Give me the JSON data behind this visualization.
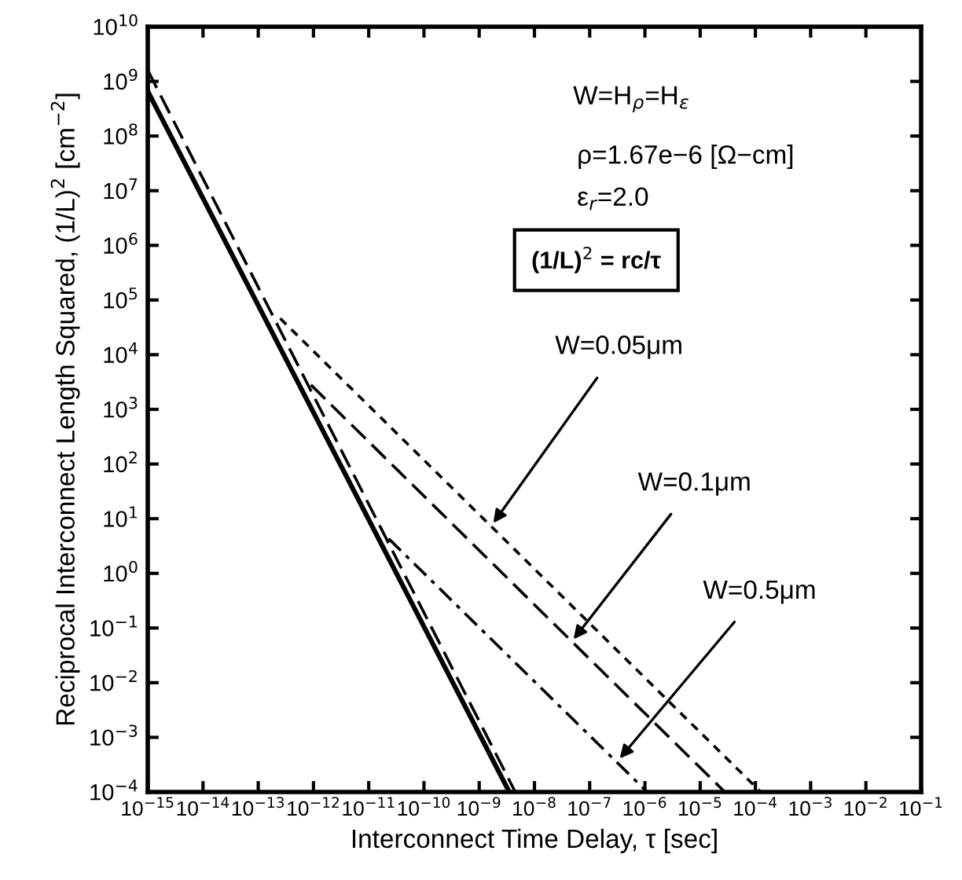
{
  "chart_data": {
    "type": "line",
    "xlabel": "Interconnect Time Delay, τ [sec]",
    "ylabel": "Reciprocal Interconnect Length Squared, (1/L)$^{2}$ [cm$^{−2}$]",
    "log": "xy",
    "grid": false,
    "marker": "none",
    "xlim": [
      1e-15,
      0.1
    ],
    "ylim": [
      0.0001,
      10000000000
    ],
    "xticks": [
      {
        "value": 1e-15,
        "label": "10$^{−15}$"
      },
      {
        "value": 1e-14,
        "label": "10$^{−14}$"
      },
      {
        "value": 1e-13,
        "label": "10$^{−13}$"
      },
      {
        "value": 1e-12,
        "label": "10$^{−12}$"
      },
      {
        "value": 1e-11,
        "label": "10$^{−11}$"
      },
      {
        "value": 1e-10,
        "label": "10$^{−10}$"
      },
      {
        "value": 1e-09,
        "label": "10$^{−9}$"
      },
      {
        "value": 1e-08,
        "label": "10$^{−8}$"
      },
      {
        "value": 1e-07,
        "label": "10$^{−7}$"
      },
      {
        "value": 1e-06,
        "label": "10$^{−6}$"
      },
      {
        "value": 1e-05,
        "label": "10$^{−5}$"
      },
      {
        "value": 0.0001,
        "label": "10$^{−4}$"
      },
      {
        "value": 0.001,
        "label": "10$^{−3}$"
      },
      {
        "value": 0.01,
        "label": "10$^{−2}$"
      },
      {
        "value": 0.1,
        "label": "10$^{−1}$"
      }
    ],
    "yticks": [
      {
        "value": 0.0001,
        "label": "10$^{−4}$"
      },
      {
        "value": 0.001,
        "label": "10$^{−3}$"
      },
      {
        "value": 0.01,
        "label": "10$^{−2}$"
      },
      {
        "value": 0.1,
        "label": "10$^{−1}$"
      },
      {
        "value": 1,
        "label": "10$^{0}$"
      },
      {
        "value": 10,
        "label": "10$^{1}$"
      },
      {
        "value": 100,
        "label": "10$^{2}$"
      },
      {
        "value": 1000,
        "label": "10$^{3}$"
      },
      {
        "value": 10000,
        "label": "10$^{4}$"
      },
      {
        "value": 100000,
        "label": "10$^{5}$"
      },
      {
        "value": 1000000,
        "label": "10$^{6}$"
      },
      {
        "value": 10000000,
        "label": "10$^{7}$"
      },
      {
        "value": 100000000,
        "label": "10$^{8}$"
      },
      {
        "value": 1000000000,
        "label": "10$^{9}$"
      },
      {
        "value": 10000000000,
        "label": "10$^{10}$"
      }
    ],
    "series": [
      {
        "color": "#000000",
        "line_style": "solid",
        "x": [
          1e-15,
          3.5e-09
        ],
        "values": [
          660000000,
          0.0001
        ]
      },
      {
        "color": "#000000",
        "line_style": "dashed",
        "x": [
          1e-15,
          4.5e-09
        ],
        "values": [
          1600000000,
          0.0001
        ]
      },
      {
        "color": "#000000",
        "line_style": "dotted",
        "x": [
          2.5e-13,
          0.000125
        ],
        "values": [
          46000,
          0.0001
        ]
      },
      {
        "color": "#000000",
        "line_style": "dashed",
        "x": [
          9e-13,
          2.8e-05
        ],
        "values": [
          2800,
          0.0001
        ]
      },
      {
        "color": "#000000",
        "line_style": "dashdot",
        "x": [
          2.3e-11,
          1.1e-06
        ],
        "values": [
          4.3,
          0.0001
        ]
      }
    ],
    "annotations": [
      {
        "text": "W=0.05μm",
        "x": 1.8e-09,
        "y": 8.3
      },
      {
        "text": "W=0.1μm",
        "x": 5.1e-08,
        "y": 0.062
      },
      {
        "text": "W=0.5μm",
        "x": 3.5e-07,
        "y": 0.00041
      },
      "W=H$_{ρ}$=H$_{ε}$",
      "ρ=1.67e−6 [Ω−cm]",
      "ε$_{r}$=2.0",
      "(1/L)$^{2}$ = rc/τ"
    ]
  }
}
